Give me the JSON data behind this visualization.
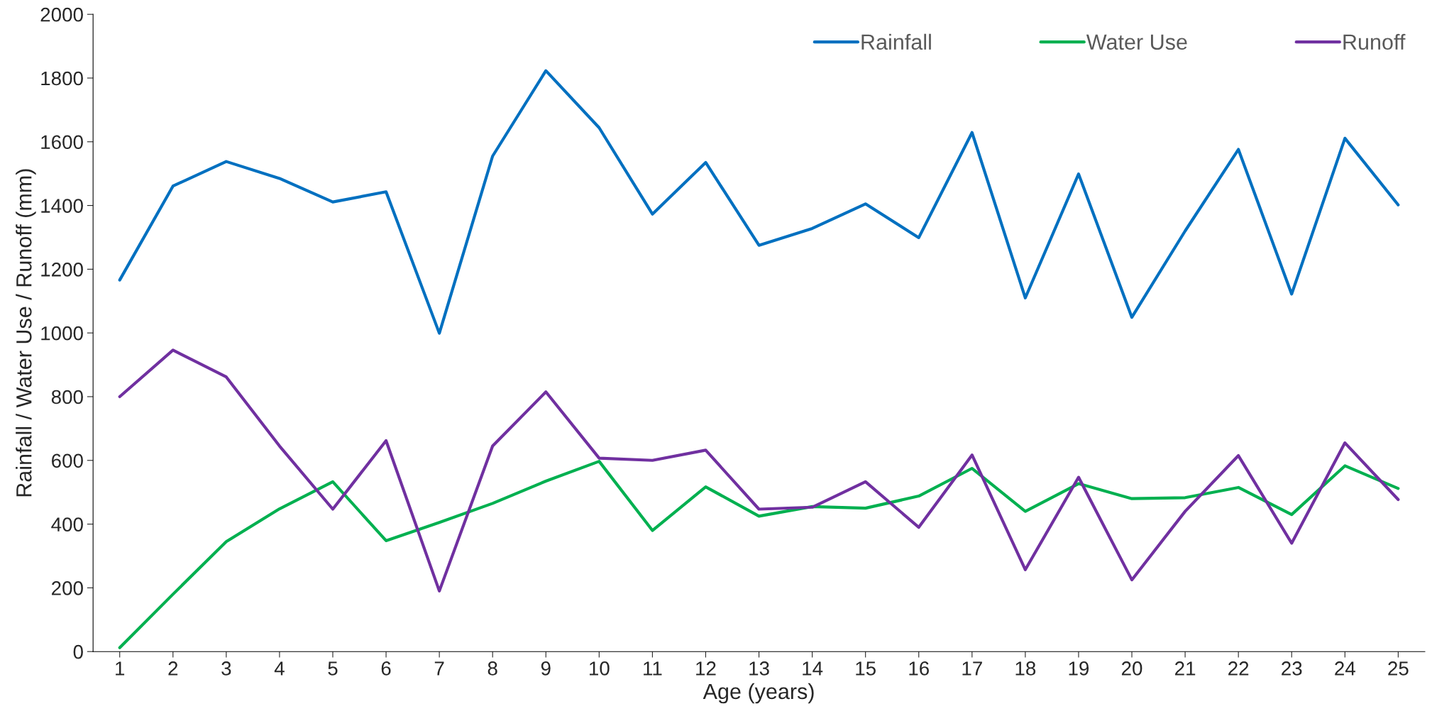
{
  "chart_data": {
    "type": "line",
    "xlabel": "Age (years)",
    "ylabel": "Rainfall / Water Use / Runoff (mm)",
    "categories": [
      "1",
      "2",
      "3",
      "4",
      "5",
      "6",
      "7",
      "8",
      "9",
      "10",
      "11",
      "12",
      "13",
      "14",
      "15",
      "16",
      "17",
      "18",
      "19",
      "20",
      "21",
      "22",
      "23",
      "24",
      "25"
    ],
    "series": [
      {
        "name": "Rainfall",
        "color": "#0070c0",
        "values": [
          1166,
          1461,
          1538,
          1485,
          1411,
          1443,
          999,
          1555,
          1823,
          1644,
          1373,
          1535,
          1275,
          1328,
          1405,
          1299,
          1629,
          1110,
          1499,
          1049,
          1320,
          1576,
          1122,
          1611,
          1402
        ]
      },
      {
        "name": "Water Use",
        "color": "#00b050",
        "values": [
          12,
          180,
          345,
          448,
          533,
          348,
          405,
          465,
          535,
          597,
          380,
          517,
          425,
          455,
          450,
          488,
          575,
          440,
          527,
          480,
          483,
          515,
          430,
          583,
          512
        ]
      },
      {
        "name": "Runoff",
        "color": "#7030a0",
        "values": [
          800,
          946,
          862,
          645,
          447,
          662,
          190,
          645,
          815,
          607,
          600,
          632,
          447,
          453,
          533,
          390,
          617,
          257,
          547,
          225,
          440,
          615,
          340,
          655,
          477
        ]
      }
    ],
    "ylim": [
      0,
      2000
    ],
    "yticks": [
      0,
      200,
      400,
      600,
      800,
      1000,
      1200,
      1400,
      1600,
      1800,
      2000
    ],
    "legend": "top right",
    "grid": false,
    "marker": "none",
    "line_style": "solid"
  }
}
